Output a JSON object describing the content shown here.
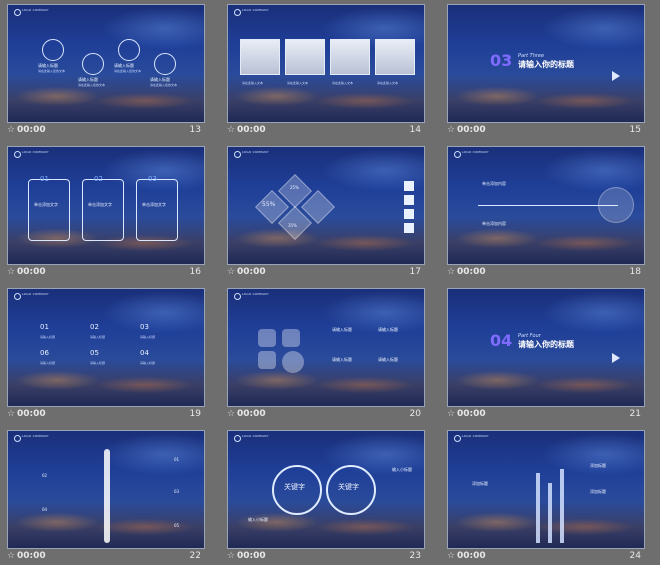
{
  "slides": [
    {
      "number": "13",
      "time": "00:00",
      "logo_text": "LOGO COMPANY",
      "labels": [
        "请输入标题",
        "请输入标题",
        "请输入标题",
        "请输入标题"
      ],
      "texts": [
        "请在此输入您的文本",
        "请在此输入您的文本",
        "请在此输入您的文本",
        "请在此输入您的文本"
      ]
    },
    {
      "number": "14",
      "time": "00:00",
      "logo_text": "LOGO COMPANY",
      "captions": [
        "请在此输入文本",
        "请在此输入文本",
        "请在此输入文本",
        "请在此输入文本"
      ]
    },
    {
      "number": "15",
      "time": "00:00",
      "section_num": "03",
      "part": "Part Three",
      "title": "请输入你的标题"
    },
    {
      "number": "16",
      "time": "00:00",
      "logo_text": "LOGO COMPANY",
      "tags": [
        "01",
        "02",
        "03"
      ],
      "titles": [
        "单击添加文字",
        "单击添加文字",
        "单击添加文字"
      ]
    },
    {
      "number": "17",
      "time": "00:00",
      "logo_text": "LOGO COMPANY",
      "percents": [
        "55%",
        "25%",
        "35%"
      ]
    },
    {
      "number": "18",
      "time": "00:00",
      "logo_text": "LOGO COMPANY",
      "lines": [
        "单击添加内容",
        "单击添加内容"
      ]
    },
    {
      "number": "19",
      "time": "00:00",
      "logo_text": "LOGO COMPANY",
      "numbers": [
        "01",
        "02",
        "03",
        "06",
        "05",
        "04"
      ],
      "labels": [
        "请输入标题",
        "请输入标题",
        "请输入标题",
        "请输入标题",
        "请输入标题",
        "请输入标题"
      ]
    },
    {
      "number": "20",
      "time": "00:00",
      "logo_text": "LOGO COMPANY",
      "labels": [
        "请输入标题",
        "请输入标题",
        "请输入标题",
        "请输入标题"
      ]
    },
    {
      "number": "21",
      "time": "00:00",
      "section_num": "04",
      "part": "Part Four",
      "title": "请输入你的标题"
    },
    {
      "number": "22",
      "time": "00:00",
      "logo_text": "LOGO COMPANY",
      "tags": [
        "01",
        "02",
        "03",
        "04",
        "05"
      ]
    },
    {
      "number": "23",
      "time": "00:00",
      "logo_text": "LOGO COMPANY",
      "keywords": [
        "关键字",
        "关键字"
      ],
      "subs": [
        "输入小标题",
        "输入小标题"
      ]
    },
    {
      "number": "24",
      "time": "00:00",
      "logo_text": "LOGO COMPANY",
      "labels": [
        "添加标题",
        "添加标题",
        "添加标题"
      ]
    }
  ]
}
